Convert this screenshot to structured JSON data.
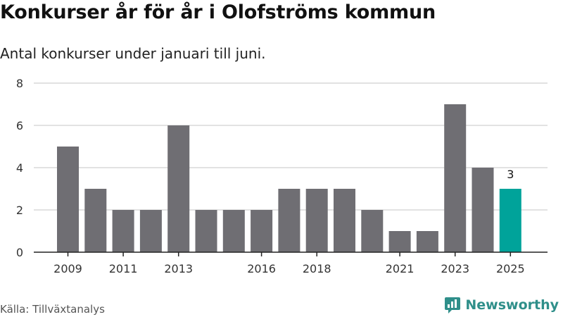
{
  "title": "Konkurser år för år i Olofströms kommun",
  "subtitle": "Antal konkurser under januari till juni.",
  "source": "Källa: Tillväxtanalys",
  "brand": {
    "name": "Newsworthy",
    "logo_icon": "bar-chart-logo-icon"
  },
  "colors": {
    "bar": "#6f6e73",
    "highlight": "#00a39a",
    "grid": "#d9d9d9",
    "axis": "#222222",
    "brand": "#2f8f8a"
  },
  "chart_data": {
    "type": "bar",
    "title": "",
    "xlabel": "",
    "ylabel": "",
    "categories": [
      "2009",
      "2010",
      "2011",
      "2012",
      "2013",
      "2014",
      "2015",
      "2016",
      "2017",
      "2018",
      "2019",
      "2020",
      "2021",
      "2022",
      "2023",
      "2024",
      "2025"
    ],
    "values": [
      5,
      3,
      2,
      2,
      6,
      2,
      2,
      2,
      3,
      3,
      3,
      2,
      1,
      1,
      7,
      4,
      3
    ],
    "ylim": [
      0,
      8
    ],
    "yticks": [
      0,
      2,
      4,
      6,
      8
    ],
    "xtick_labels": [
      "2009",
      "2011",
      "2013",
      "2016",
      "2018",
      "2021",
      "2023",
      "2025"
    ],
    "highlight_category": "2025",
    "data_labels": [
      {
        "category": "2025",
        "text": "3"
      }
    ],
    "grid": true,
    "legend": "none"
  }
}
